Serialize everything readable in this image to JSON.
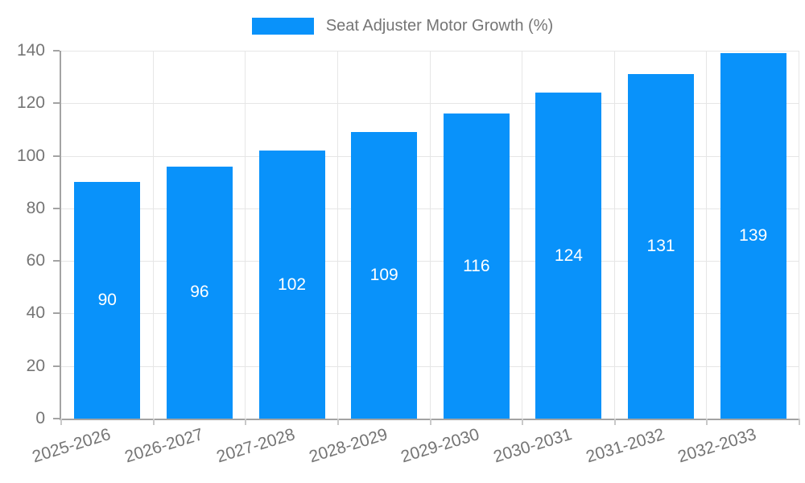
{
  "legend": {
    "label": "Seat Adjuster Motor Growth (%)"
  },
  "chart_data": {
    "type": "bar",
    "title": "Seat Adjuster Motor Growth (%)",
    "categories": [
      "2025-2026",
      "2026-2027",
      "2027-2028",
      "2028-2029",
      "2029-2030",
      "2030-2031",
      "2031-2032",
      "2032-2033"
    ],
    "values": [
      90,
      96,
      102,
      109,
      116,
      124,
      131,
      139
    ],
    "xlabel": "",
    "ylabel": "",
    "ylim": [
      0,
      140
    ],
    "ytick_step": 20,
    "yticks": [
      0,
      20,
      40,
      60,
      80,
      100,
      120,
      140
    ],
    "grid": true,
    "legend_position": "top-center",
    "x_label_rotation_deg": -17,
    "bar_width_ratio": 0.715,
    "bar_color": "#0992fa",
    "value_label_color": "#ffffff"
  },
  "colors": {
    "accent": "#0992fa",
    "axis_line": "#a3a3a3",
    "gridline": "#e6e6e6",
    "x_tick": "#c9c9c9",
    "tick_label_text": "#757575",
    "legend_text": "#757575",
    "background": "#ffffff"
  }
}
